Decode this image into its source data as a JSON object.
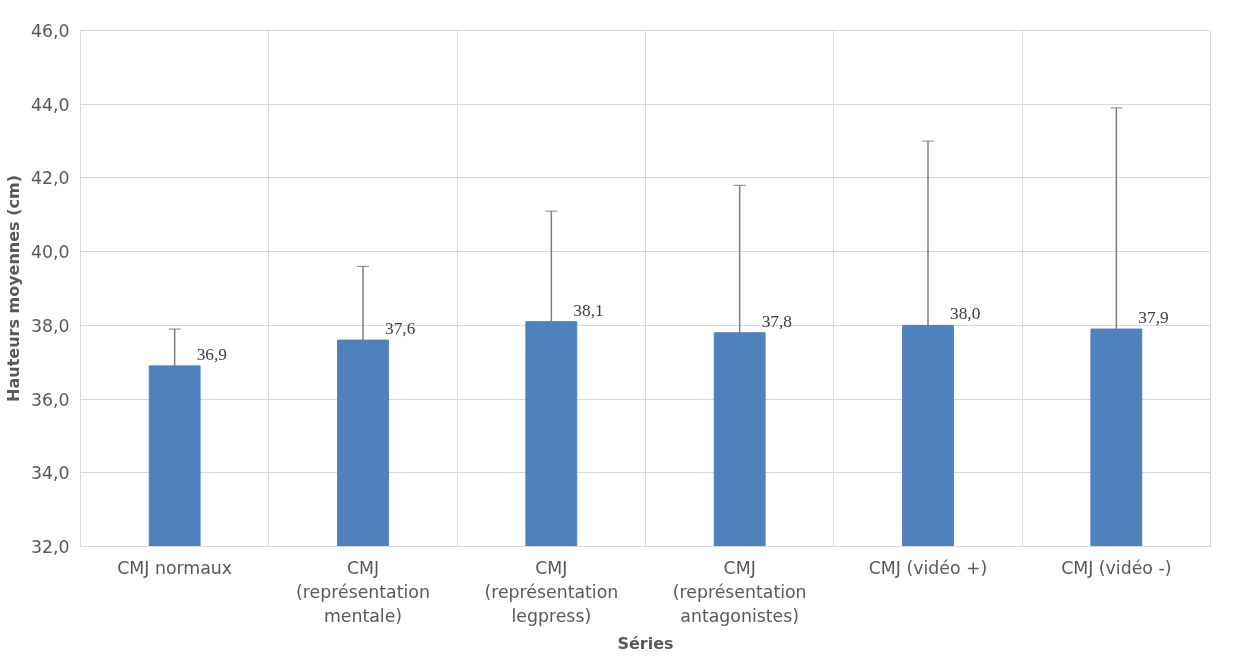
{
  "chart_data": {
    "type": "bar",
    "xlabel": "Séries",
    "ylabel": "Hauteurs moyennes (cm)",
    "categories": [
      "CMJ normaux",
      "CMJ (représentation mentale)",
      "CMJ (représentation legpress)",
      "CMJ (représentation antagonistes)",
      "CMJ (vidéo +)",
      "CMJ (vidéo -)"
    ],
    "values": [
      36.9,
      37.6,
      38.1,
      37.8,
      38.0,
      37.9
    ],
    "errors": [
      [
        36.9,
        37.9
      ],
      [
        37.6,
        39.6
      ],
      [
        38.1,
        41.1
      ],
      [
        37.8,
        41.8
      ],
      [
        38.0,
        43.0
      ],
      [
        37.9,
        43.9
      ]
    ],
    "value_labels": [
      "36,9",
      "37,6",
      "38,1",
      "37,8",
      "38,0",
      "37,9"
    ],
    "color": "#4f81bd",
    "ylim": [
      32,
      46
    ],
    "yticks": [
      {
        "value": 32,
        "label": "32,0"
      },
      {
        "value": 34,
        "label": "34,0"
      },
      {
        "value": 36,
        "label": "36,0"
      },
      {
        "value": 38,
        "label": "38,0"
      },
      {
        "value": 40,
        "label": "40,0"
      },
      {
        "value": 42,
        "label": "42,0"
      },
      {
        "value": 44,
        "label": "44,0"
      },
      {
        "value": 46,
        "label": "46,0"
      }
    ],
    "grid": true
  }
}
